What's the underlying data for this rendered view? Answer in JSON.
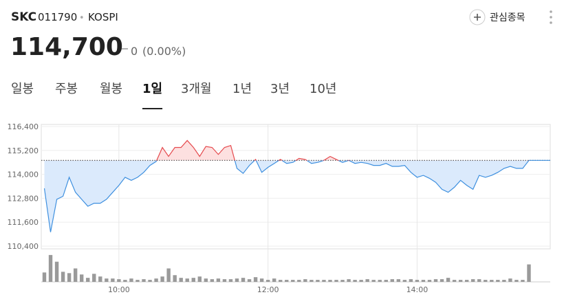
{
  "header": {
    "name": "SKC",
    "code": "011790",
    "separator": "•",
    "market": "KOSPI",
    "price": "114,700",
    "change": "0",
    "change_rate": "(0.00%)",
    "watch_button": "관심종목"
  },
  "tabs": {
    "items": [
      "일봉",
      "주봉",
      "월봉",
      "1일",
      "3개월",
      "1년",
      "3년",
      "10년"
    ],
    "selected": 3
  },
  "chart_data": {
    "type": "line",
    "x": [
      "09:00",
      "09:05",
      "09:10",
      "09:15",
      "09:20",
      "09:25",
      "09:30",
      "09:35",
      "09:40",
      "09:45",
      "09:50",
      "09:55",
      "10:00",
      "10:05",
      "10:10",
      "10:15",
      "10:20",
      "10:25",
      "10:30",
      "10:35",
      "10:40",
      "10:45",
      "10:50",
      "10:55",
      "11:00",
      "11:05",
      "11:10",
      "11:15",
      "11:20",
      "11:25",
      "11:30",
      "11:35",
      "11:40",
      "11:45",
      "11:50",
      "11:55",
      "12:00",
      "12:05",
      "12:10",
      "12:15",
      "12:20",
      "12:25",
      "12:30",
      "12:35",
      "12:40",
      "12:45",
      "12:50",
      "12:55",
      "13:00",
      "13:05",
      "13:10",
      "13:15",
      "13:20",
      "13:25",
      "13:30",
      "13:35",
      "13:40",
      "13:45",
      "13:50",
      "13:55",
      "14:00",
      "14:05",
      "14:10",
      "14:15",
      "14:20",
      "14:25",
      "14:30",
      "14:35",
      "14:40",
      "14:45",
      "14:50",
      "14:55",
      "15:00",
      "15:05",
      "15:10",
      "15:15",
      "15:20",
      "15:25",
      "15:30"
    ],
    "values": [
      113300,
      111100,
      112750,
      112900,
      113850,
      113100,
      112750,
      112400,
      112550,
      112550,
      112750,
      113100,
      113450,
      113850,
      113700,
      113850,
      114100,
      114450,
      114650,
      115350,
      114900,
      115350,
      115350,
      115700,
      115350,
      114900,
      115400,
      115350,
      115000,
      115350,
      115450,
      114300,
      114050,
      114450,
      114750,
      114100,
      114350,
      114550,
      114750,
      114550,
      114600,
      114800,
      114750,
      114550,
      114600,
      114700,
      114900,
      114750,
      114600,
      114700,
      114550,
      114600,
      114550,
      114450,
      114450,
      114550,
      114400,
      114400,
      114450,
      114100,
      113850,
      113950,
      113800,
      113600,
      113250,
      113100,
      113350,
      113700,
      113450,
      113250,
      113950,
      113850,
      113950,
      114100,
      114300,
      114400,
      114300,
      114300,
      114700
    ],
    "volumes": [
      14,
      40,
      30,
      15,
      13,
      20,
      11,
      6,
      12,
      8,
      5,
      5,
      4,
      3,
      5,
      3,
      4,
      3,
      5,
      8,
      20,
      10,
      6,
      5,
      6,
      8,
      5,
      4,
      5,
      4,
      4,
      5,
      6,
      4,
      7,
      5,
      3,
      5,
      3,
      3,
      3,
      3,
      4,
      3,
      3,
      3,
      3,
      3,
      3,
      4,
      3,
      3,
      4,
      3,
      3,
      3,
      4,
      4,
      3,
      4,
      3,
      3,
      3,
      4,
      4,
      6,
      3,
      3,
      3,
      4,
      4,
      3,
      3,
      3,
      3,
      5,
      3,
      3,
      26
    ],
    "prev_close": 114700,
    "xlim": [
      "09:00",
      "15:30"
    ],
    "xticks": [
      "10:00",
      "12:00",
      "14:00"
    ],
    "ylim": [
      110400,
      116400
    ],
    "yticks": [
      {
        "value": 110400,
        "label": "110,400"
      },
      {
        "value": 111600,
        "label": "111,600"
      },
      {
        "value": 112800,
        "label": "112,800"
      },
      {
        "value": 114000,
        "label": "114,000"
      },
      {
        "value": 115200,
        "label": "115,200"
      },
      {
        "value": 116400,
        "label": "116,400"
      }
    ],
    "vlim": [
      0,
      45
    ],
    "grid": true,
    "up_color": "#e5494d",
    "down_color": "#3d8fdf",
    "up_fill": "#fde0e0",
    "down_fill": "#dbeafc",
    "volume_color": "#9a9a9a"
  }
}
